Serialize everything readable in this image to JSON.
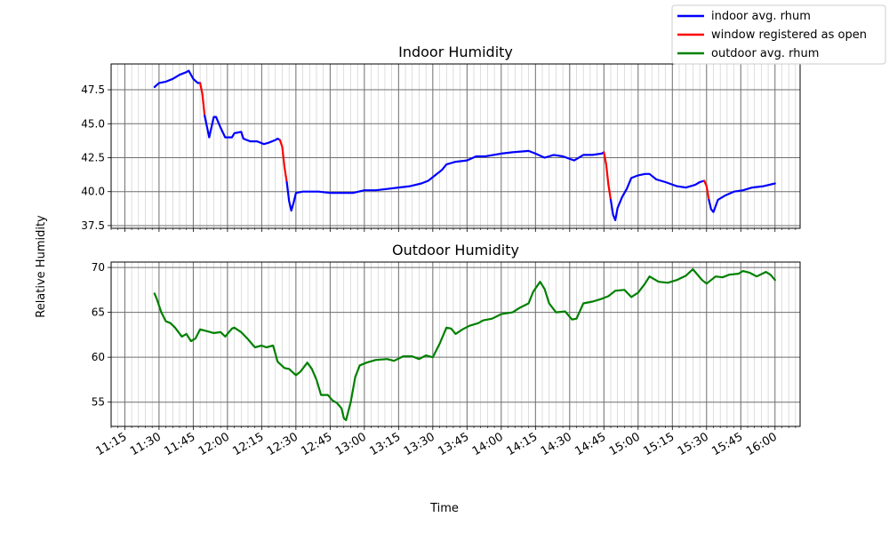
{
  "figure": {
    "ylabel": "Relative Humidity",
    "xlabel": "Time"
  },
  "legend": {
    "placement": "top-right",
    "entries": [
      {
        "label": "indoor avg. rhum",
        "color": "#0000ff"
      },
      {
        "label": "window registered as open",
        "color": "#ff0000"
      },
      {
        "label": "outdoor avg. rhum",
        "color": "#008000"
      }
    ]
  },
  "chart_data": [
    {
      "type": "line",
      "title": "Indoor Humidity",
      "ylim": [
        37.3,
        49.4
      ],
      "yticks": [
        37.5,
        40.0,
        42.5,
        45.0,
        47.5
      ],
      "ytick_labels": [
        "37.5",
        "40.0",
        "42.5",
        "45.0",
        "47.5"
      ],
      "grid": true,
      "series": [
        {
          "name": "indoor avg. rhum",
          "color": "#0000ff",
          "points": [
            [
              "11:28",
              47.7
            ],
            [
              "11:30",
              48.0
            ],
            [
              "11:33",
              48.1
            ],
            [
              "11:36",
              48.3
            ],
            [
              "11:39",
              48.6
            ],
            [
              "11:42",
              48.8
            ],
            [
              "11:43",
              48.9
            ],
            [
              "11:45",
              48.3
            ],
            [
              "11:47",
              48.0
            ],
            [
              "11:48",
              48.0
            ]
          ]
        },
        {
          "name": "window registered as open",
          "color": "#ff0000",
          "points": [
            [
              "11:48",
              48.0
            ],
            [
              "11:49",
              47.2
            ],
            [
              "11:50",
              45.6
            ]
          ]
        },
        {
          "name": "indoor avg. rhum",
          "color": "#0000ff",
          "points": [
            [
              "11:50",
              45.6
            ],
            [
              "11:52",
              44.0
            ],
            [
              "11:54",
              45.5
            ],
            [
              "11:55",
              45.5
            ],
            [
              "11:57",
              44.7
            ],
            [
              "11:59",
              44.0
            ],
            [
              "12:02",
              44.0
            ],
            [
              "12:03",
              44.3
            ],
            [
              "12:06",
              44.4
            ],
            [
              "12:07",
              43.9
            ],
            [
              "12:10",
              43.7
            ],
            [
              "12:13",
              43.7
            ],
            [
              "12:16",
              43.5
            ],
            [
              "12:18",
              43.6
            ],
            [
              "12:21",
              43.8
            ],
            [
              "12:22",
              43.9
            ],
            [
              "12:23",
              43.8
            ]
          ]
        },
        {
          "name": "window registered as open",
          "color": "#ff0000",
          "points": [
            [
              "12:23",
              43.8
            ],
            [
              "12:24",
              43.3
            ],
            [
              "12:25",
              41.8
            ],
            [
              "12:26",
              40.7
            ]
          ]
        },
        {
          "name": "indoor avg. rhum",
          "color": "#0000ff",
          "points": [
            [
              "12:26",
              40.7
            ],
            [
              "12:27",
              39.3
            ],
            [
              "12:28",
              38.6
            ],
            [
              "12:29",
              39.2
            ],
            [
              "12:30",
              39.9
            ],
            [
              "12:33",
              40.0
            ],
            [
              "12:40",
              40.0
            ],
            [
              "12:45",
              39.9
            ],
            [
              "12:50",
              39.9
            ],
            [
              "12:55",
              39.9
            ],
            [
              "13:00",
              40.1
            ],
            [
              "13:05",
              40.1
            ],
            [
              "13:10",
              40.2
            ],
            [
              "13:15",
              40.3
            ],
            [
              "13:20",
              40.4
            ],
            [
              "13:25",
              40.6
            ],
            [
              "13:28",
              40.8
            ],
            [
              "13:31",
              41.2
            ],
            [
              "13:34",
              41.6
            ],
            [
              "13:36",
              42.0
            ],
            [
              "13:40",
              42.2
            ],
            [
              "13:45",
              42.3
            ],
            [
              "13:49",
              42.6
            ],
            [
              "13:53",
              42.6
            ],
            [
              "14:00",
              42.8
            ],
            [
              "14:05",
              42.9
            ],
            [
              "14:12",
              43.0
            ],
            [
              "14:15",
              42.8
            ],
            [
              "14:19",
              42.5
            ],
            [
              "14:23",
              42.7
            ],
            [
              "14:27",
              42.6
            ],
            [
              "14:32",
              42.3
            ],
            [
              "14:36",
              42.7
            ],
            [
              "14:40",
              42.7
            ],
            [
              "14:44",
              42.8
            ],
            [
              "14:45",
              42.9
            ]
          ]
        },
        {
          "name": "window registered as open",
          "color": "#ff0000",
          "points": [
            [
              "14:45",
              42.9
            ],
            [
              "14:46",
              42.0
            ],
            [
              "14:47",
              40.5
            ],
            [
              "14:48",
              39.4
            ]
          ]
        },
        {
          "name": "indoor avg. rhum",
          "color": "#0000ff",
          "points": [
            [
              "14:48",
              39.4
            ],
            [
              "14:49",
              38.3
            ],
            [
              "14:50",
              37.9
            ],
            [
              "14:51",
              38.8
            ],
            [
              "14:53",
              39.6
            ],
            [
              "14:55",
              40.2
            ],
            [
              "14:57",
              41.0
            ],
            [
              "15:00",
              41.2
            ],
            [
              "15:03",
              41.3
            ],
            [
              "15:05",
              41.3
            ],
            [
              "15:08",
              40.9
            ],
            [
              "15:12",
              40.7
            ],
            [
              "15:17",
              40.4
            ],
            [
              "15:21",
              40.3
            ],
            [
              "15:25",
              40.5
            ],
            [
              "15:27",
              40.7
            ],
            [
              "15:29",
              40.8
            ]
          ]
        },
        {
          "name": "window registered as open",
          "color": "#ff0000",
          "points": [
            [
              "15:29",
              40.8
            ],
            [
              "15:30",
              40.4
            ],
            [
              "15:31",
              39.4
            ]
          ]
        },
        {
          "name": "indoor avg. rhum",
          "color": "#0000ff",
          "points": [
            [
              "15:31",
              39.4
            ],
            [
              "15:32",
              38.7
            ],
            [
              "15:33",
              38.5
            ],
            [
              "15:35",
              39.4
            ],
            [
              "15:38",
              39.7
            ],
            [
              "15:42",
              40.0
            ],
            [
              "15:46",
              40.1
            ],
            [
              "15:50",
              40.3
            ],
            [
              "15:55",
              40.4
            ],
            [
              "16:00",
              40.6
            ]
          ]
        }
      ]
    },
    {
      "type": "line",
      "title": "Outdoor Humidity",
      "ylim": [
        52.3,
        70.6
      ],
      "yticks": [
        55,
        60,
        65,
        70
      ],
      "ytick_labels": [
        "55",
        "60",
        "65",
        "70"
      ],
      "grid": true,
      "series": [
        {
          "name": "outdoor avg. rhum",
          "color": "#008000",
          "points": [
            [
              "11:28",
              67.1
            ],
            [
              "11:29",
              66.5
            ],
            [
              "11:31",
              65.0
            ],
            [
              "11:33",
              64.0
            ],
            [
              "11:35",
              63.8
            ],
            [
              "11:37",
              63.3
            ],
            [
              "11:40",
              62.3
            ],
            [
              "11:42",
              62.6
            ],
            [
              "11:44",
              61.8
            ],
            [
              "11:46",
              62.1
            ],
            [
              "11:48",
              63.1
            ],
            [
              "11:51",
              62.9
            ],
            [
              "11:54",
              62.7
            ],
            [
              "11:57",
              62.8
            ],
            [
              "11:59",
              62.3
            ],
            [
              "12:02",
              63.2
            ],
            [
              "12:03",
              63.3
            ],
            [
              "12:06",
              62.8
            ],
            [
              "12:09",
              62.0
            ],
            [
              "12:12",
              61.1
            ],
            [
              "12:15",
              61.3
            ],
            [
              "12:17",
              61.1
            ],
            [
              "12:20",
              61.3
            ],
            [
              "12:22",
              59.5
            ],
            [
              "12:25",
              58.8
            ],
            [
              "12:27",
              58.7
            ],
            [
              "12:30",
              58.0
            ],
            [
              "12:32",
              58.4
            ],
            [
              "12:35",
              59.4
            ],
            [
              "12:37",
              58.7
            ],
            [
              "12:39",
              57.5
            ],
            [
              "12:41",
              55.8
            ],
            [
              "12:44",
              55.8
            ],
            [
              "12:46",
              55.2
            ],
            [
              "12:48",
              54.9
            ],
            [
              "12:50",
              54.3
            ],
            [
              "12:51",
              53.2
            ],
            [
              "12:52",
              53.0
            ],
            [
              "12:54",
              55.0
            ],
            [
              "12:56",
              57.8
            ],
            [
              "12:58",
              59.1
            ],
            [
              "13:01",
              59.4
            ],
            [
              "13:05",
              59.7
            ],
            [
              "13:10",
              59.8
            ],
            [
              "13:13",
              59.6
            ],
            [
              "13:17",
              60.1
            ],
            [
              "13:21",
              60.1
            ],
            [
              "13:24",
              59.8
            ],
            [
              "13:27",
              60.2
            ],
            [
              "13:30",
              60.0
            ],
            [
              "13:33",
              61.5
            ],
            [
              "13:36",
              63.3
            ],
            [
              "13:38",
              63.2
            ],
            [
              "13:40",
              62.6
            ],
            [
              "13:43",
              63.1
            ],
            [
              "13:46",
              63.5
            ],
            [
              "13:50",
              63.8
            ],
            [
              "13:52",
              64.1
            ],
            [
              "13:56",
              64.3
            ],
            [
              "14:00",
              64.8
            ],
            [
              "14:05",
              65.0
            ],
            [
              "14:08",
              65.5
            ],
            [
              "14:12",
              66.0
            ],
            [
              "14:14",
              67.3
            ],
            [
              "14:17",
              68.4
            ],
            [
              "14:19",
              67.6
            ],
            [
              "14:21",
              66.0
            ],
            [
              "14:24",
              65.0
            ],
            [
              "14:28",
              65.1
            ],
            [
              "14:31",
              64.2
            ],
            [
              "14:33",
              64.3
            ],
            [
              "14:36",
              66.0
            ],
            [
              "14:40",
              66.2
            ],
            [
              "14:44",
              66.5
            ],
            [
              "14:47",
              66.8
            ],
            [
              "14:50",
              67.4
            ],
            [
              "14:54",
              67.5
            ],
            [
              "14:57",
              66.7
            ],
            [
              "15:00",
              67.2
            ],
            [
              "15:03",
              68.2
            ],
            [
              "15:05",
              69.0
            ],
            [
              "15:09",
              68.4
            ],
            [
              "15:13",
              68.3
            ],
            [
              "15:17",
              68.6
            ],
            [
              "15:21",
              69.1
            ],
            [
              "15:24",
              69.8
            ],
            [
              "15:28",
              68.6
            ],
            [
              "15:30",
              68.2
            ],
            [
              "15:34",
              69.0
            ],
            [
              "15:37",
              68.9
            ],
            [
              "15:40",
              69.2
            ],
            [
              "15:44",
              69.3
            ],
            [
              "15:46",
              69.6
            ],
            [
              "15:49",
              69.4
            ],
            [
              "15:52",
              69.0
            ],
            [
              "15:56",
              69.5
            ],
            [
              "15:58",
              69.2
            ],
            [
              "16:00",
              68.6
            ]
          ]
        }
      ]
    }
  ],
  "x_axis": {
    "xlim": [
      "11:09",
      "16:11"
    ],
    "ticks": [
      "11:15",
      "11:30",
      "11:45",
      "12:00",
      "12:15",
      "12:30",
      "12:45",
      "13:00",
      "13:15",
      "13:30",
      "13:45",
      "14:00",
      "14:15",
      "14:30",
      "14:45",
      "15:00",
      "15:15",
      "15:30",
      "15:45",
      "16:00"
    ],
    "minor_step_minutes": 3
  }
}
